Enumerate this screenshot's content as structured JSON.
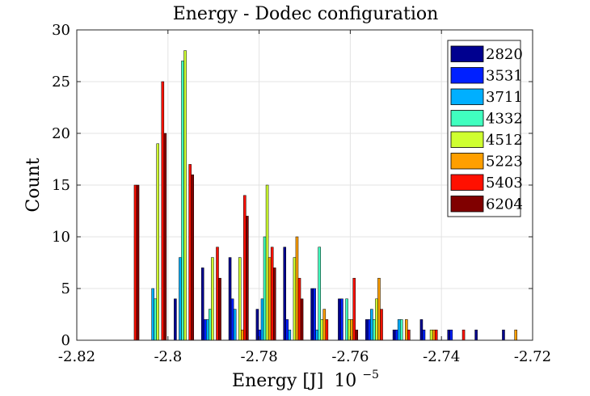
{
  "chart_data": {
    "type": "bar",
    "title": "Energy - Dodec configuration",
    "xlabel": "Energy [J]",
    "xlabel_exponent_base": "10",
    "xlabel_exponent": "−5",
    "ylabel": "Count",
    "xlim": [
      -2.82,
      -2.72
    ],
    "ylim": [
      0,
      30
    ],
    "xticks": [
      "-2.82",
      "-2.8",
      "-2.78",
      "-2.76",
      "-2.74",
      "-2.72"
    ],
    "xtick_values": [
      -2.82,
      -2.8,
      -2.78,
      -2.76,
      -2.74,
      -2.72
    ],
    "yticks": [
      "0",
      "5",
      "10",
      "15",
      "20",
      "25",
      "30"
    ],
    "ytick_values": [
      0,
      5,
      10,
      15,
      20,
      25,
      30
    ],
    "grid": true,
    "legend_position": "top-right",
    "bin_centers": [
      -2.8085,
      -2.8025,
      -2.7965,
      -2.7905,
      -2.7845,
      -2.7785,
      -2.7725,
      -2.7665,
      -2.7605,
      -2.7545,
      -2.7485,
      -2.7425,
      -2.7365,
      -2.7305,
      -2.7245
    ],
    "series": [
      {
        "name": "2820",
        "color": "#00008f",
        "values": [
          0,
          0,
          4,
          7,
          8,
          3,
          9,
          5,
          4,
          2,
          1,
          2,
          1,
          1,
          1
        ]
      },
      {
        "name": "3531",
        "color": "#0020ff",
        "values": [
          0,
          0,
          0,
          2,
          4,
          1,
          2,
          5,
          4,
          2,
          1,
          1,
          1,
          0,
          0
        ]
      },
      {
        "name": "3711",
        "color": "#00afff",
        "values": [
          0,
          5,
          8,
          2,
          3,
          4,
          1,
          1,
          0,
          3,
          2,
          0,
          0,
          0,
          0
        ]
      },
      {
        "name": "4332",
        "color": "#40ffbf",
        "values": [
          0,
          4,
          27,
          3,
          0,
          10,
          0,
          9,
          4,
          2,
          2,
          0,
          0,
          0,
          0
        ]
      },
      {
        "name": "4512",
        "color": "#cfff30",
        "values": [
          0,
          19,
          28,
          8,
          8,
          15,
          8,
          2,
          2,
          4,
          0,
          1,
          0,
          0,
          0
        ]
      },
      {
        "name": "5223",
        "color": "#ff9f00",
        "values": [
          0,
          0,
          0,
          0,
          1,
          8,
          10,
          3,
          2,
          6,
          2,
          1,
          0,
          0,
          1
        ]
      },
      {
        "name": "5403",
        "color": "#ff1000",
        "values": [
          15,
          25,
          17,
          9,
          14,
          9,
          6,
          2,
          6,
          3,
          1,
          1,
          1,
          0,
          0
        ]
      },
      {
        "name": "6204",
        "color": "#800000",
        "values": [
          15,
          20,
          16,
          6,
          12,
          7,
          4,
          0,
          1,
          0,
          0,
          0,
          0,
          0,
          0
        ]
      }
    ]
  }
}
